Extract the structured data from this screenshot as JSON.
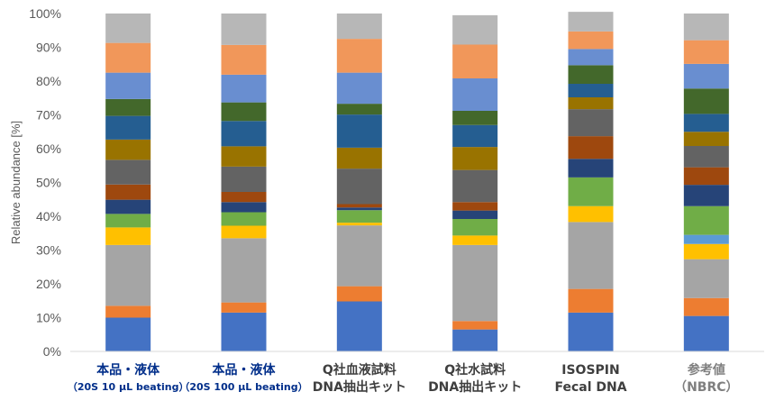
{
  "chart_data": {
    "type": "bar",
    "stacked": true,
    "percent_stacked": true,
    "ylabel": "Relative abundance [%]",
    "ylim": [
      0,
      100
    ],
    "ytick_labels": [
      "0%",
      "10%",
      "20%",
      "30%",
      "40%",
      "50%",
      "60%",
      "70%",
      "80%",
      "90%",
      "100%"
    ],
    "grid": false,
    "legend": "none",
    "categories": [
      {
        "line1": "本品・液体",
        "line2": "（20S 10 µL beating）",
        "color": "#002e8a"
      },
      {
        "line1": "本品・液体",
        "line2": "（20S 100 µL beating）",
        "color": "#002e8a"
      },
      {
        "line1": "Q社血液試料",
        "line2": "DNA抽出キット",
        "color": "#3f3f3f"
      },
      {
        "line1": "Q社水試料",
        "line2": "DNA抽出キット",
        "color": "#3f3f3f"
      },
      {
        "line1": "ISOSPIN",
        "line2": "Fecal DNA",
        "color": "#3f3f3f"
      },
      {
        "line1": "参考値",
        "line2": "（NBRC）",
        "color": "#7f7f7f"
      }
    ],
    "series": [
      {
        "color": "#4472c4",
        "values": [
          10.0,
          11.5,
          14.8,
          6.5,
          11.5,
          10.5
        ]
      },
      {
        "color": "#ed7d31",
        "values": [
          3.5,
          3.0,
          4.5,
          2.5,
          7.0,
          5.3
        ]
      },
      {
        "color": "#a5a5a5",
        "values": [
          18.0,
          19.0,
          18.0,
          22.5,
          19.8,
          11.5
        ]
      },
      {
        "color": "#ffc000",
        "values": [
          5.2,
          3.7,
          0.8,
          2.8,
          4.7,
          4.5
        ]
      },
      {
        "color": "#5b9bd5",
        "values": [
          0.0,
          0.0,
          0.0,
          0.0,
          0.0,
          2.7
        ]
      },
      {
        "color": "#70ad47",
        "values": [
          4.0,
          4.0,
          3.7,
          4.9,
          8.5,
          8.5
        ]
      },
      {
        "color": "#264478",
        "values": [
          4.2,
          3.0,
          0.8,
          2.5,
          5.5,
          6.3
        ]
      },
      {
        "color": "#9e480e",
        "values": [
          4.5,
          3.0,
          1.0,
          2.5,
          6.7,
          5.2
        ]
      },
      {
        "color": "#636363",
        "values": [
          7.3,
          7.5,
          10.5,
          9.5,
          8.0,
          6.3
        ]
      },
      {
        "color": "#997300",
        "values": [
          6.0,
          6.0,
          6.2,
          6.8,
          3.5,
          4.2
        ]
      },
      {
        "color": "#255e91",
        "values": [
          7.0,
          7.5,
          9.8,
          6.5,
          4.0,
          5.3
        ]
      },
      {
        "color": "#43682b",
        "values": [
          5.0,
          5.5,
          3.2,
          4.2,
          5.5,
          7.5
        ]
      },
      {
        "color": "#698ed0",
        "values": [
          7.8,
          8.2,
          9.2,
          9.6,
          4.8,
          7.3
        ]
      },
      {
        "color": "#f1975a",
        "values": [
          8.8,
          8.8,
          10.0,
          10.0,
          5.2,
          7.0
        ]
      },
      {
        "color": "#b7b7b7",
        "values": [
          8.7,
          9.3,
          7.5,
          8.7,
          5.8,
          7.9
        ]
      }
    ]
  }
}
